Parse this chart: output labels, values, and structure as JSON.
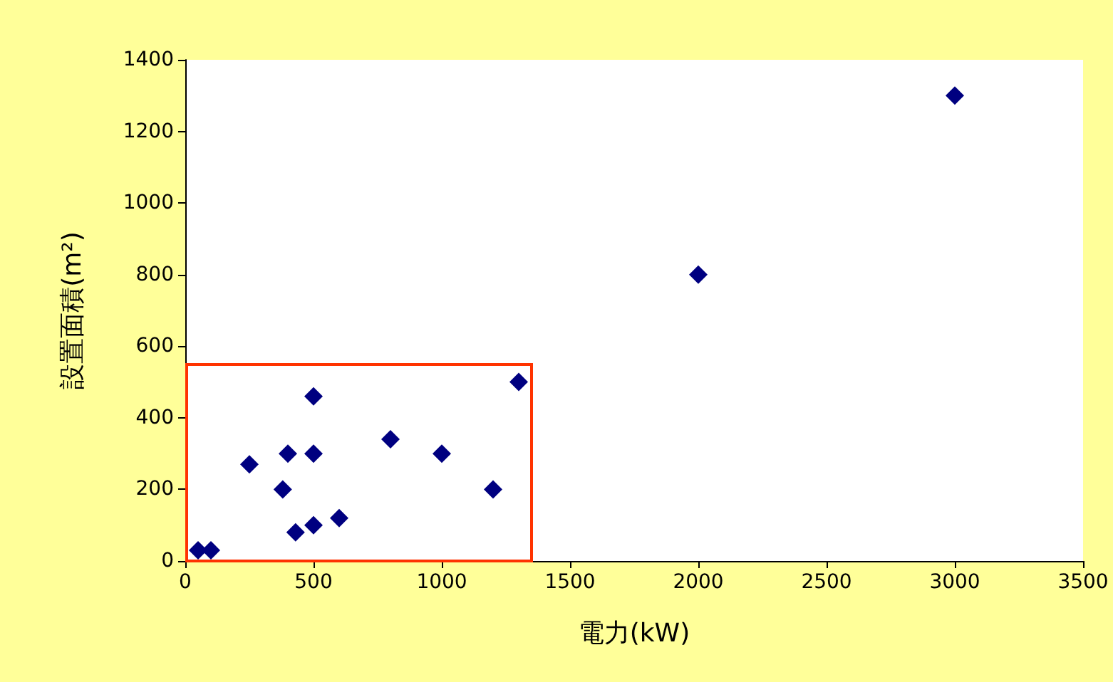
{
  "chart_data": {
    "type": "scatter",
    "xlabel": "電力(kW)",
    "ylabel": "設置面積(m²)",
    "x": [
      50,
      100,
      250,
      380,
      400,
      430,
      500,
      500,
      500,
      600,
      800,
      1000,
      1200,
      1300,
      2000,
      3000
    ],
    "series": [
      {
        "color": "#000080",
        "values": [
          30,
          30,
          270,
          200,
          300,
          80,
          460,
          300,
          100,
          120,
          340,
          300,
          200,
          500,
          800,
          1300
        ]
      }
    ],
    "xlim": [
      0,
      3500
    ],
    "xticks": [
      0,
      500,
      1000,
      1500,
      2000,
      2500,
      3000,
      3500
    ],
    "ylim": [
      0,
      1400
    ],
    "yticks": [
      0,
      200,
      400,
      600,
      800,
      1000,
      1200,
      1400
    ],
    "grid": false,
    "marker": "diamond"
  }
}
